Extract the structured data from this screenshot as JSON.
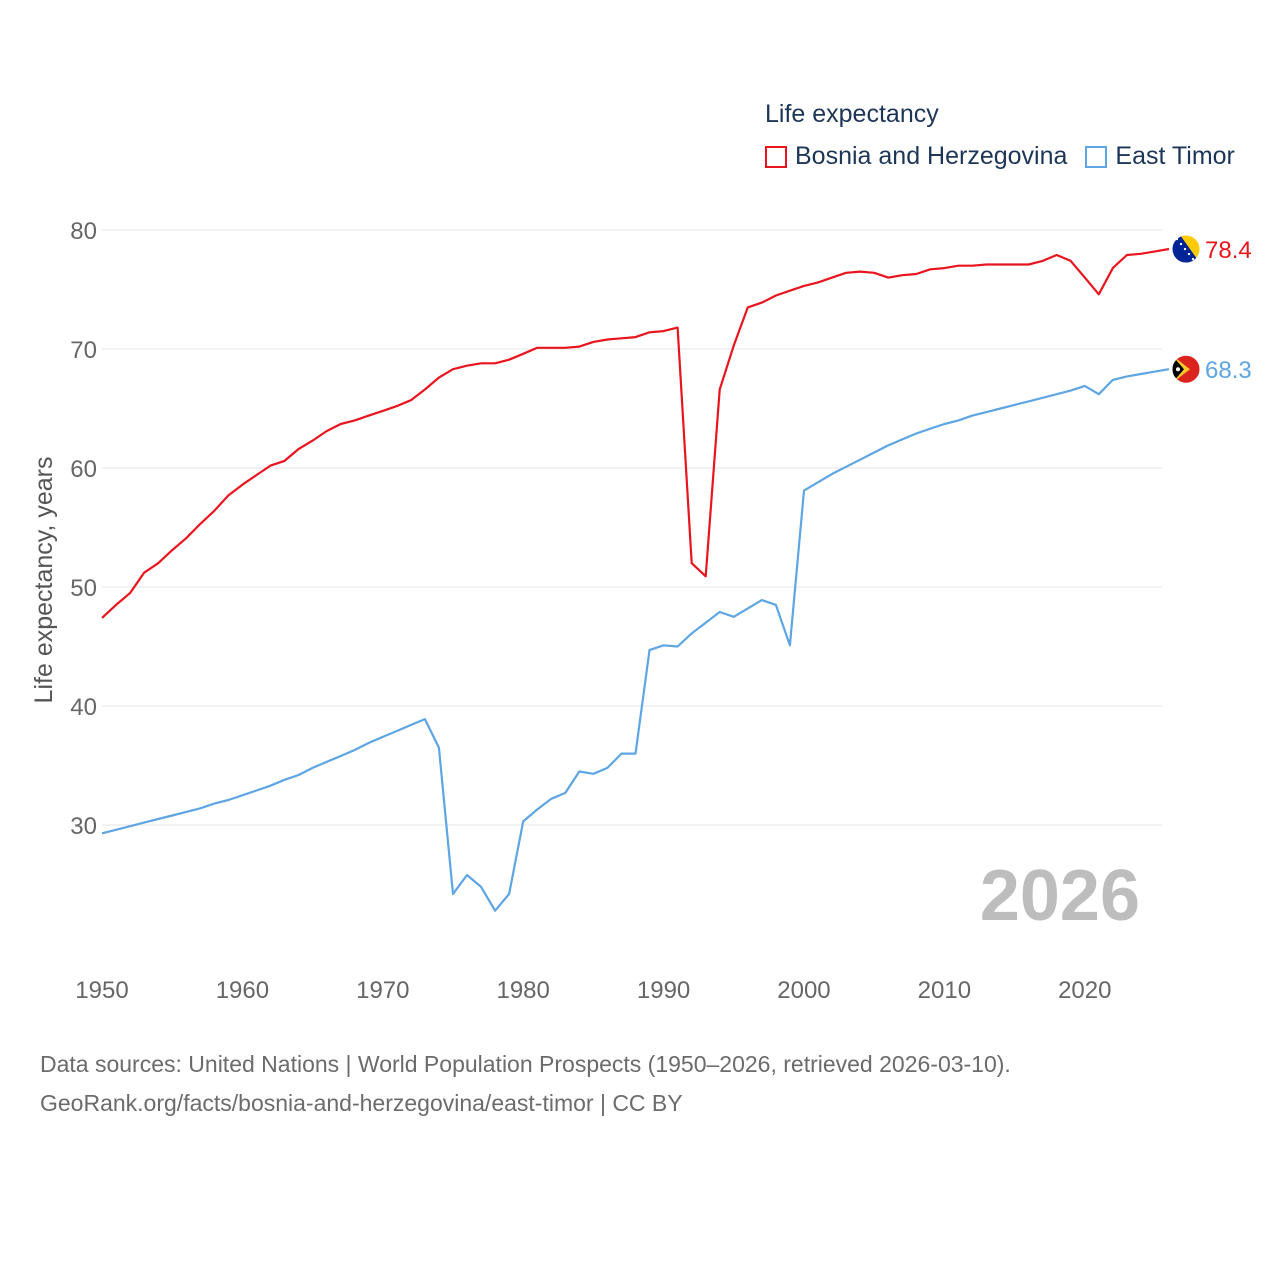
{
  "chart_data": {
    "type": "line",
    "legend_title": "Life expectancy",
    "ylabel": "Life expectancy, years",
    "xlabel": "",
    "year_label": "2026",
    "xlim": [
      1950,
      2026
    ],
    "ylim": [
      20,
      82
    ],
    "x_ticks": [
      1950,
      1960,
      1970,
      1980,
      1990,
      2000,
      2010,
      2020
    ],
    "y_ticks": [
      30,
      40,
      50,
      60,
      70,
      80
    ],
    "x": [
      1950,
      1951,
      1952,
      1953,
      1954,
      1955,
      1956,
      1957,
      1958,
      1959,
      1960,
      1961,
      1962,
      1963,
      1964,
      1965,
      1966,
      1967,
      1968,
      1969,
      1970,
      1971,
      1972,
      1973,
      1974,
      1975,
      1976,
      1977,
      1978,
      1979,
      1980,
      1981,
      1982,
      1983,
      1984,
      1985,
      1986,
      1987,
      1988,
      1989,
      1990,
      1991,
      1992,
      1993,
      1994,
      1995,
      1996,
      1997,
      1998,
      1999,
      2000,
      2001,
      2002,
      2003,
      2004,
      2005,
      2006,
      2007,
      2008,
      2009,
      2010,
      2011,
      2012,
      2013,
      2014,
      2015,
      2016,
      2017,
      2018,
      2019,
      2020,
      2021,
      2022,
      2023,
      2024,
      2025,
      2026
    ],
    "series": [
      {
        "name": "Bosnia and Herzegovina",
        "color": "#e8141e",
        "end_label": "78.4",
        "flag_icon": "bosnia-flag-icon",
        "values": [
          47.4,
          48.5,
          49.5,
          51.2,
          52.0,
          53.1,
          54.1,
          55.3,
          56.4,
          57.7,
          58.6,
          59.4,
          60.2,
          60.6,
          61.6,
          62.3,
          63.1,
          63.7,
          64.0,
          64.4,
          64.8,
          65.2,
          65.7,
          66.6,
          67.6,
          68.3,
          68.6,
          68.8,
          68.8,
          69.1,
          69.6,
          70.1,
          70.1,
          70.1,
          70.2,
          70.6,
          70.8,
          70.9,
          71.0,
          71.4,
          71.5,
          71.8,
          52.0,
          50.9,
          66.6,
          70.3,
          73.5,
          73.9,
          74.5,
          74.9,
          75.3,
          75.6,
          76.0,
          76.4,
          76.5,
          76.4,
          76.0,
          76.2,
          76.3,
          76.7,
          76.8,
          77.0,
          77.0,
          77.1,
          77.1,
          77.1,
          77.1,
          77.4,
          77.9,
          77.4,
          76.0,
          74.6,
          76.8,
          77.9,
          78.0,
          78.2,
          78.4
        ]
      },
      {
        "name": "East Timor",
        "color": "#5ea5e3",
        "end_label": "68.3",
        "flag_icon": "east-timor-flag-icon",
        "values": [
          29.3,
          29.6,
          29.9,
          30.2,
          30.5,
          30.8,
          31.1,
          31.4,
          31.8,
          32.1,
          32.5,
          32.9,
          33.3,
          33.8,
          34.2,
          34.8,
          35.3,
          35.8,
          36.3,
          36.9,
          37.4,
          37.9,
          38.4,
          38.9,
          36.5,
          24.2,
          25.8,
          24.8,
          22.8,
          24.2,
          30.3,
          31.3,
          32.2,
          32.7,
          34.5,
          34.3,
          34.8,
          36.0,
          36.0,
          44.7,
          45.1,
          45.0,
          46.1,
          47.0,
          47.9,
          47.5,
          48.2,
          48.9,
          48.5,
          45.1,
          58.1,
          58.8,
          59.5,
          60.1,
          60.7,
          61.3,
          61.9,
          62.4,
          62.9,
          63.3,
          63.7,
          64.0,
          64.4,
          64.7,
          65.0,
          65.3,
          65.6,
          65.9,
          66.2,
          66.5,
          66.9,
          66.2,
          67.4,
          67.7,
          67.9,
          68.1,
          68.3
        ]
      }
    ]
  },
  "footer": {
    "line1": "Data sources: United Nations | World Population Prospects (1950–2026, retrieved 2026-03-10).",
    "line2": "GeoRank.org/facts/bosnia-and-herzegovina/east-timor | CC BY"
  }
}
